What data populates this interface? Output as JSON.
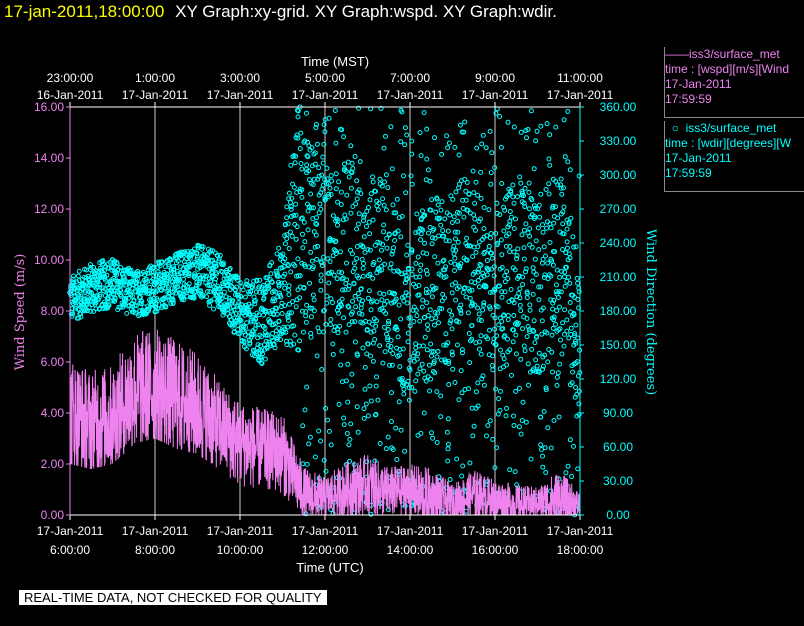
{
  "header": {
    "timestamp": "17-jan-2011,18:00:00",
    "titles": "XY Graph:xy-grid.  XY Graph:wspd.  XY Graph:wdir."
  },
  "legend": {
    "wspd": {
      "name": "iss3/surface_met",
      "desc": "time : [wspd][m/s][Wind",
      "date": "17-Jan-2011",
      "time": "17:59:59"
    },
    "wdir": {
      "name": "iss3/surface_met",
      "desc": "time : [wdir][degrees][W",
      "date": "17-Jan-2011",
      "time": "17:59:59"
    }
  },
  "footer": "REAL-TIME DATA, NOT CHECKED FOR QUALITY",
  "colors": {
    "wspd": "#ee82ee",
    "wdir": "#00ffff",
    "header_time": "#ffff00",
    "axes": "#ffffff"
  },
  "chart_data": {
    "type": "line",
    "top_axis_label": "Time (MST)",
    "bottom_axis_label": "Time (UTC)",
    "left_axis_label": "Wind Speed (m/s)",
    "right_axis_label": "Wind Direction (degrees)",
    "x_range_utc_hours": [
      6,
      18
    ],
    "left_ylim": [
      0,
      16
    ],
    "right_ylim": [
      0,
      360
    ],
    "grid": "vertical lines at 2-hour ticks",
    "bottom_ticks": [
      {
        "date": "17-Jan-2011",
        "time": "6:00:00"
      },
      {
        "date": "17-Jan-2011",
        "time": "8:00:00"
      },
      {
        "date": "17-Jan-2011",
        "time": "10:00:00"
      },
      {
        "date": "17-Jan-2011",
        "time": "12:00:00"
      },
      {
        "date": "17-Jan-2011",
        "time": "14:00:00"
      },
      {
        "date": "17-Jan-2011",
        "time": "16:00:00"
      },
      {
        "date": "17-Jan-2011",
        "time": "18:00:00"
      }
    ],
    "top_ticks": [
      {
        "date": "16-Jan-2011",
        "time": "23:00:00"
      },
      {
        "date": "17-Jan-2011",
        "time": "1:00:00"
      },
      {
        "date": "17-Jan-2011",
        "time": "3:00:00"
      },
      {
        "date": "17-Jan-2011",
        "time": "5:00:00"
      },
      {
        "date": "17-Jan-2011",
        "time": "7:00:00"
      },
      {
        "date": "17-Jan-2011",
        "time": "9:00:00"
      },
      {
        "date": "17-Jan-2011",
        "time": "11:00:00"
      }
    ],
    "left_ticks": [
      "0.00",
      "2.00",
      "4.00",
      "6.00",
      "8.00",
      "10.00",
      "12.00",
      "14.00",
      "16.00"
    ],
    "right_ticks": [
      "0.00",
      "30.00",
      "60.00",
      "90.00",
      "120.00",
      "150.00",
      "180.00",
      "210.00",
      "240.00",
      "270.00",
      "300.00",
      "330.00",
      "360.00"
    ],
    "series": [
      {
        "name": "iss3/surface_met wspd",
        "axis": "left",
        "style": "line",
        "x_utc_hours": [
          6.0,
          6.5,
          7.0,
          7.5,
          8.0,
          8.5,
          9.0,
          9.5,
          10.0,
          10.5,
          11.0,
          11.5,
          12.0,
          12.5,
          13.0,
          13.5,
          14.0,
          14.5,
          15.0,
          15.5,
          16.0,
          16.5,
          17.0,
          17.5,
          18.0
        ],
        "mean": [
          4.0,
          3.6,
          3.8,
          4.8,
          5.0,
          4.6,
          4.2,
          3.5,
          2.8,
          2.6,
          2.4,
          0.8,
          0.7,
          1.0,
          1.2,
          0.9,
          1.0,
          0.6,
          0.5,
          0.8,
          0.6,
          0.4,
          0.5,
          0.6,
          0.4
        ],
        "min": [
          2.0,
          1.8,
          2.0,
          2.8,
          3.0,
          2.6,
          2.4,
          1.8,
          1.0,
          1.0,
          0.8,
          0.0,
          0.0,
          0.0,
          0.0,
          0.0,
          0.0,
          0.0,
          0.0,
          0.0,
          0.0,
          0.0,
          0.0,
          0.0,
          0.0
        ],
        "max": [
          6.5,
          6.0,
          6.2,
          7.6,
          7.8,
          7.2,
          6.8,
          5.4,
          4.4,
          4.2,
          4.0,
          2.2,
          1.6,
          2.2,
          2.4,
          2.0,
          2.0,
          2.5,
          1.4,
          2.0,
          1.6,
          1.6,
          1.2,
          2.4,
          1.0
        ]
      },
      {
        "name": "iss3/surface_met wdir",
        "axis": "right",
        "style": "scatter",
        "x_utc_hours": [
          6.0,
          6.5,
          7.0,
          7.5,
          8.0,
          8.5,
          9.0,
          9.5,
          10.0,
          10.5,
          11.0,
          11.5,
          12.0,
          12.5,
          13.0,
          13.5,
          14.0,
          14.5,
          15.0,
          15.5,
          16.0,
          16.5,
          17.0,
          17.5,
          18.0
        ],
        "mean": [
          190,
          200,
          205,
          195,
          200,
          210,
          215,
          205,
          180,
          170,
          200,
          260,
          220,
          240,
          200,
          220,
          180,
          200,
          210,
          230,
          190,
          220,
          200,
          230,
          160
        ],
        "min": [
          160,
          170,
          175,
          170,
          175,
          185,
          190,
          175,
          140,
          120,
          150,
          0,
          0,
          0,
          0,
          0,
          0,
          0,
          0,
          0,
          0,
          0,
          0,
          0,
          0
        ],
        "max": [
          210,
          225,
          230,
          220,
          230,
          240,
          250,
          240,
          210,
          215,
          260,
          360,
          360,
          360,
          360,
          360,
          360,
          360,
          360,
          360,
          360,
          360,
          360,
          360,
          360
        ]
      }
    ]
  }
}
